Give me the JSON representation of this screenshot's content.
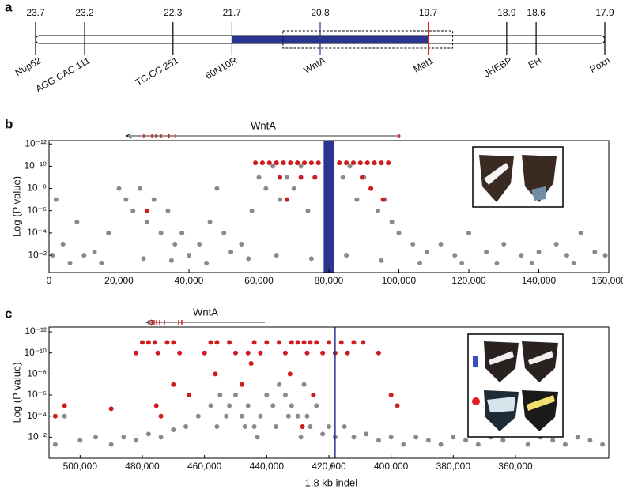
{
  "panels": [
    "a",
    "b",
    "c"
  ],
  "chart_data": [
    {
      "type": "map",
      "xlim": [
        23.7,
        17.9
      ],
      "positions": [
        23.7,
        23.2,
        22.3,
        21.7,
        20.8,
        19.7,
        18.9,
        18.6,
        17.9
      ],
      "markers": [
        "Nup62",
        "AGG.CAC.111",
        "TC.CC.251",
        "60N10R",
        "WntA",
        "Mat1",
        "JHEBP",
        "EH",
        "Poxn"
      ],
      "marker_colors": [
        "#000000",
        "#000000",
        "#000000",
        "#4a8fd0",
        "#2a3590",
        "#e02020",
        "#000000",
        "#000000",
        "#000000"
      ],
      "interval": [
        21.7,
        19.7
      ],
      "interval_color": "#2a3590",
      "box": [
        21.18,
        19.45
      ]
    },
    {
      "type": "scatter",
      "ylabel": "Log (P value)",
      "log": true,
      "xlim": [
        0,
        160000
      ],
      "xticks": [
        0,
        {
          "value": 20000,
          "label": "20,000"
        },
        {
          "value": 40000,
          "label": "40,000"
        },
        {
          "value": 60000,
          "label": "60,000"
        },
        {
          "value": 80000,
          "label": "80,000"
        },
        {
          "value": 100000,
          "label": "100,000"
        },
        {
          "value": 120000,
          "label": "120,000"
        },
        {
          "value": 140000,
          "label": "140,000"
        },
        {
          "value": 160000,
          "label": "160,000"
        }
      ],
      "ylim": [
        0.36,
        5e-13
      ],
      "yticks": [
        {
          "value": 1e-12,
          "label": "10⁻¹²"
        },
        {
          "value": 1e-10,
          "label": "10⁻¹⁰"
        },
        {
          "value": 1e-08,
          "label": "10⁻⁸"
        },
        {
          "value": 1e-06,
          "label": "10⁻⁶"
        },
        {
          "value": 0.0001,
          "label": "10⁻⁴"
        },
        {
          "value": 0.01,
          "label": "10⁻²"
        }
      ],
      "gene": {
        "label": "WntA",
        "start": 22000,
        "end": 100500,
        "exons": [
          27100,
          29400,
          30500,
          32100,
          34300,
          36200,
          100100
        ]
      },
      "band": [
        78500,
        81500
      ],
      "band_color": "#2a3590",
      "series": [
        {
          "color": "#8a8a8a",
          "x": [
            1000,
            2000,
            4000,
            8000,
            10000,
            13000,
            17000,
            20000,
            22000,
            24000,
            26000,
            28000,
            30000,
            32000,
            34000,
            36000,
            38000,
            40000,
            43000,
            46000,
            48000,
            50000,
            52000,
            55000,
            58000,
            60000,
            62000,
            64000,
            66000,
            68000,
            70000,
            72000,
            74000,
            76000,
            84000,
            86000,
            88000,
            90000,
            92000,
            94000,
            96000,
            98000,
            100000,
            104000,
            108000,
            112000,
            116000,
            120000,
            125000,
            130000,
            135000,
            140000,
            145000,
            148000,
            152000,
            156000,
            159000,
            6000,
            15000,
            27000,
            35000,
            45000,
            57000,
            65000,
            75000,
            85000,
            95000,
            106000,
            118000,
            128000,
            138000,
            150000
          ],
          "values": [
            0.01,
            1e-07,
            0.001,
            1e-05,
            0.01,
            0.005,
            0.0001,
            1e-08,
            1e-07,
            1e-06,
            1e-08,
            1e-05,
            1e-07,
            0.0001,
            1e-06,
            0.001,
            0.0001,
            0.01,
            0.001,
            1e-05,
            1e-08,
            0.0001,
            0.005,
            0.001,
            1e-06,
            1e-09,
            1e-08,
            1e-10,
            1e-07,
            1e-09,
            1e-08,
            1e-10,
            1e-06,
            1e-09,
            1e-09,
            1e-10,
            1e-07,
            1e-09,
            1e-08,
            1e-06,
            1e-07,
            1e-05,
            0.0001,
            0.001,
            0.005,
            0.001,
            0.01,
            0.0001,
            0.005,
            0.001,
            0.01,
            0.005,
            0.001,
            0.01,
            0.0001,
            0.005,
            0.01,
            0.05,
            0.05,
            0.02,
            0.03,
            0.05,
            0.02,
            0.01,
            0.02,
            0.01,
            0.03,
            0.05,
            0.05,
            0.05,
            0.05,
            0.05
          ]
        },
        {
          "color": "#d01c1c",
          "x": [
            59000,
            61000,
            63000,
            65000,
            67000,
            69000,
            71000,
            73000,
            75000,
            77000,
            83000,
            85000,
            87000,
            89000,
            91000,
            93000,
            95000,
            97000,
            66000,
            72000,
            76000,
            89500,
            92000,
            68000,
            95500,
            28000
          ],
          "values": [
            5e-11,
            5e-11,
            5e-11,
            5e-11,
            5e-11,
            5e-11,
            5e-11,
            5e-11,
            5e-11,
            5e-11,
            5e-11,
            5e-11,
            5e-11,
            5e-11,
            5e-11,
            5e-11,
            5e-11,
            5e-11,
            1e-09,
            1e-09,
            1e-09,
            1e-09,
            1e-08,
            1e-07,
            1e-07,
            1e-06
          ]
        }
      ]
    },
    {
      "type": "scatter",
      "ylabel": "Log (P value)",
      "log": true,
      "xlim": [
        510000,
        330000
      ],
      "xticks": [
        {
          "value": 500000,
          "label": "500,000"
        },
        {
          "value": 480000,
          "label": "480,000"
        },
        {
          "value": 460000,
          "label": "460,000"
        },
        {
          "value": 440000,
          "label": "440,000"
        },
        {
          "value": 420000,
          "label": "420,000"
        },
        {
          "value": 400000,
          "label": "400,000"
        },
        {
          "value": 380000,
          "label": "380,000"
        },
        {
          "value": 360000,
          "label": "360,000"
        }
      ],
      "ylim": [
        1,
        3.5e-13
      ],
      "yticks": [
        {
          "value": 1e-12,
          "label": "10⁻¹²"
        },
        {
          "value": 1e-10,
          "label": "10⁻¹⁰"
        },
        {
          "value": 1e-08,
          "label": "10⁻⁸"
        },
        {
          "value": 1e-06,
          "label": "10⁻⁶"
        },
        {
          "value": 0.0001,
          "label": "10⁻⁴"
        },
        {
          "value": 0.01,
          "label": "10⁻²"
        }
      ],
      "gene": {
        "label": "WntA",
        "start": 478700,
        "end": 440600,
        "exons": [
          477900,
          476900,
          476200,
          475400,
          474400,
          472900,
          468300,
          467300
        ]
      },
      "indel": {
        "x": 418000,
        "marker": "*",
        "label": "1.8 kb indel",
        "color": "#2a3590"
      },
      "series": [
        {
          "color": "#8a8a8a",
          "x": [
            508000,
            505000,
            500000,
            495000,
            490000,
            486000,
            482000,
            478000,
            474000,
            470000,
            466000,
            462000,
            458000,
            455000,
            452000,
            450000,
            448000,
            446000,
            444000,
            442000,
            440000,
            438000,
            436000,
            434000,
            432000,
            430000,
            428000,
            426000,
            424000,
            422000,
            420000,
            418000,
            415000,
            412000,
            408000,
            404000,
            400000,
            396000,
            392000,
            388000,
            384000,
            380000,
            376000,
            372000,
            368000,
            364000,
            360000,
            356000,
            352000,
            348000,
            344000,
            340000,
            336000,
            332000,
            456000,
            453000,
            447000,
            443000,
            437000,
            433000,
            429000,
            427000
          ],
          "values": [
            0.05,
            0.0001,
            0.02,
            0.01,
            0.05,
            0.01,
            0.02,
            0.005,
            0.01,
            0.002,
            0.001,
            0.0001,
            1e-05,
            1e-06,
            1e-05,
            1e-06,
            0.0001,
            1e-05,
            0.001,
            0.0001,
            1e-06,
            1e-05,
            1e-07,
            1e-06,
            1e-05,
            0.0001,
            1e-07,
            0.001,
            1e-05,
            0.005,
            0.001,
            0.01,
            0.001,
            0.01,
            0.005,
            0.02,
            0.01,
            0.05,
            0.01,
            0.02,
            0.05,
            0.01,
            0.02,
            0.05,
            0.01,
            0.02,
            0.0001,
            0.05,
            0.01,
            0.02,
            0.05,
            0.01,
            0.02,
            0.05,
            0.001,
            0.0001,
            0.001,
            0.01,
            0.001,
            0.0001,
            0.01,
            0.0001
          ]
        },
        {
          "color": "#d01c1c",
          "x": [
            480000,
            478000,
            476000,
            472000,
            470000,
            458000,
            456000,
            452000,
            444000,
            440000,
            436000,
            432000,
            430000,
            428000,
            426000,
            424000,
            420000,
            416000,
            412000,
            409000,
            482000,
            475000,
            468000,
            460000,
            450000,
            446000,
            442000,
            434000,
            427000,
            422000,
            418000,
            414000,
            404000,
            470000,
            456500,
            465000,
            475500,
            474000,
            490000,
            505000,
            508000,
            400000,
            398000,
            448000,
            432500,
            425000,
            428500,
            445000
          ],
          "values": [
            1e-11,
            1e-11,
            1e-11,
            1e-11,
            1e-11,
            1e-11,
            1e-11,
            1e-11,
            1e-11,
            1e-11,
            1e-11,
            1e-11,
            1e-11,
            1e-11,
            1e-11,
            1e-11,
            1e-11,
            1e-11,
            1e-11,
            1e-11,
            1e-10,
            1e-10,
            1e-10,
            1e-10,
            1e-10,
            1e-10,
            1e-10,
            1e-10,
            1e-10,
            1e-10,
            1e-10,
            1e-10,
            1e-10,
            1e-07,
            1e-08,
            1e-06,
            1e-05,
            0.0001,
            2e-05,
            1e-05,
            0.0001,
            1e-06,
            1e-05,
            1e-07,
            1e-08,
            1e-06,
            0.001,
            1e-09
          ]
        }
      ]
    }
  ]
}
